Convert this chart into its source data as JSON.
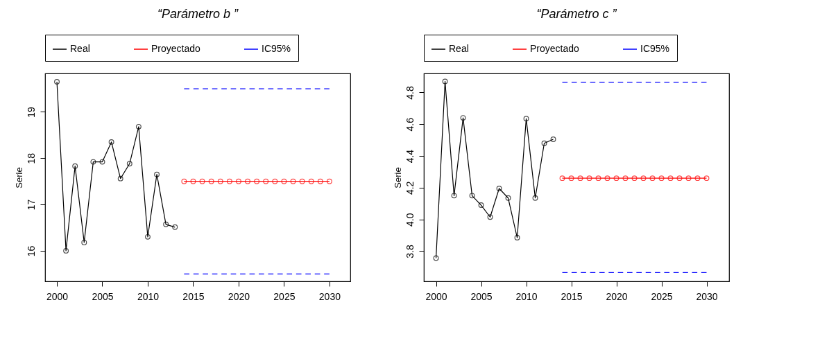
{
  "chart_data": [
    {
      "type": "line",
      "title": "“Parámetro b ”",
      "ylabel": "Serie",
      "xlim": [
        1998.7,
        2032.3
      ],
      "xticks": [
        2000,
        2005,
        2010,
        2015,
        2020,
        2025,
        2030
      ],
      "ylim": [
        15.34,
        19.83
      ],
      "yticks": [
        16,
        17,
        18,
        19
      ],
      "grid": false,
      "legend": "top",
      "series": [
        {
          "name": "Real",
          "color": "#000000",
          "marker": "circle",
          "line_style": "solid",
          "x": [
            2000,
            2001,
            2002,
            2003,
            2004,
            2005,
            2006,
            2007,
            2008,
            2009,
            2010,
            2011,
            2012,
            2013
          ],
          "values": [
            19.65,
            16.0,
            17.83,
            16.18,
            17.92,
            17.92,
            18.35,
            17.56,
            17.88,
            18.68,
            16.3,
            17.65,
            16.57,
            16.51
          ]
        },
        {
          "name": "Proyectado",
          "color": "#ff0000",
          "marker": "circle",
          "line_style": "solid",
          "x": [
            2014,
            2015,
            2016,
            2017,
            2018,
            2019,
            2020,
            2021,
            2022,
            2023,
            2024,
            2025,
            2026,
            2027,
            2028,
            2029,
            2030
          ],
          "values": [
            17.5,
            17.5,
            17.5,
            17.5,
            17.5,
            17.5,
            17.5,
            17.5,
            17.5,
            17.5,
            17.5,
            17.5,
            17.5,
            17.5,
            17.5,
            17.5,
            17.5
          ]
        },
        {
          "name": "IC95%",
          "color": "#0000ff",
          "marker": "none",
          "line_style": "dashed",
          "x": [
            2014,
            2030
          ],
          "values": [
            19.5,
            19.5
          ]
        },
        {
          "color": "#0000ff",
          "marker": "none",
          "line_style": "dashed",
          "x": [
            2014,
            2030
          ],
          "values": [
            15.5,
            15.5
          ]
        }
      ]
    },
    {
      "type": "line",
      "title": "“Parámetro c ”",
      "ylabel": "Serie",
      "xlim": [
        1998.65,
        2032.5
      ],
      "xticks": [
        2000,
        2005,
        2010,
        2015,
        2020,
        2025,
        2030
      ],
      "ylim": [
        3.61,
        4.92
      ],
      "yticks": [
        {
          "value": 3.8,
          "label": "3.8"
        },
        {
          "value": 4.0,
          "label": "4.0"
        },
        {
          "value": 4.2,
          "label": "4.2"
        },
        {
          "value": 4.4,
          "label": "4.4"
        },
        {
          "value": 4.6,
          "label": "4.6"
        },
        {
          "value": 4.8,
          "label": "4.8"
        }
      ],
      "grid": false,
      "legend": "top",
      "series": [
        {
          "name": "Real",
          "color": "#000000",
          "marker": "circle",
          "line_style": "solid",
          "x": [
            2000,
            2001,
            2002,
            2003,
            2004,
            2005,
            2006,
            2007,
            2008,
            2009,
            2010,
            2011,
            2012,
            2013
          ],
          "values": [
            3.756,
            4.87,
            4.15,
            4.64,
            4.15,
            4.09,
            4.015,
            4.195,
            4.135,
            3.885,
            4.635,
            4.135,
            4.48,
            4.505
          ]
        },
        {
          "name": "Proyectado",
          "color": "#ff0000",
          "marker": "circle",
          "line_style": "solid",
          "x": [
            2014,
            2015,
            2016,
            2017,
            2018,
            2019,
            2020,
            2021,
            2022,
            2023,
            2024,
            2025,
            2026,
            2027,
            2028,
            2029,
            2030
          ],
          "values": [
            4.26,
            4.26,
            4.26,
            4.26,
            4.26,
            4.26,
            4.26,
            4.26,
            4.26,
            4.26,
            4.26,
            4.26,
            4.26,
            4.26,
            4.26,
            4.26,
            4.26
          ]
        },
        {
          "name": "IC95%",
          "color": "#0000ff",
          "marker": "none",
          "line_style": "dashed",
          "x": [
            2014,
            2030
          ],
          "values": [
            4.865,
            4.865
          ]
        },
        {
          "color": "#0000ff",
          "marker": "none",
          "line_style": "dashed",
          "x": [
            2014,
            2030
          ],
          "values": [
            3.665,
            3.665
          ]
        }
      ]
    }
  ]
}
